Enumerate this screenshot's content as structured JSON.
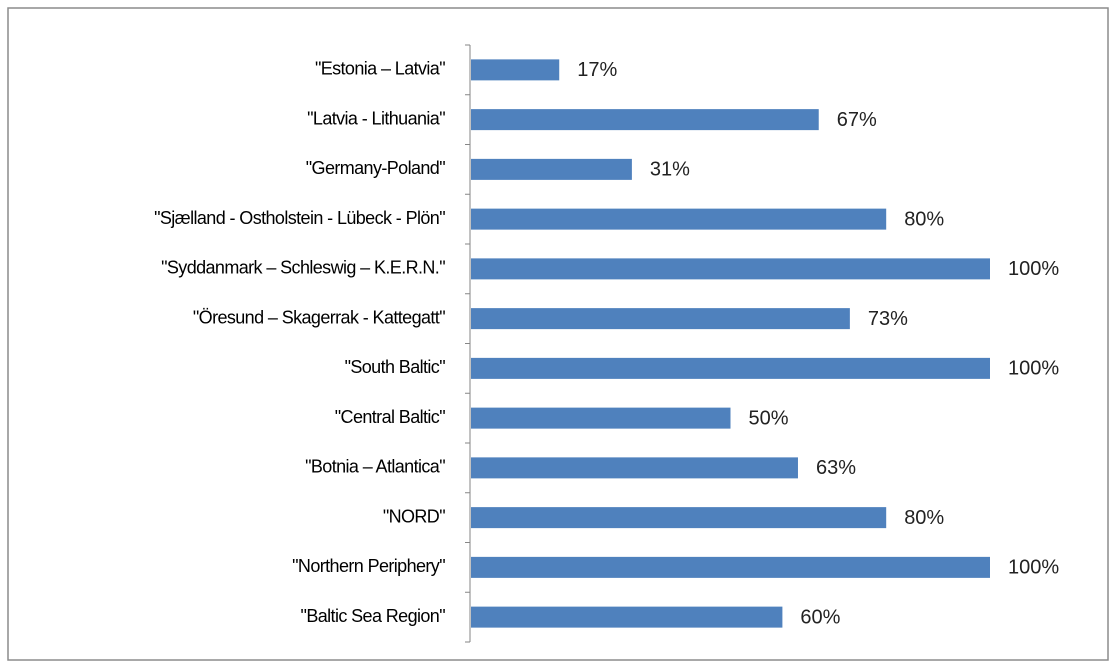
{
  "chart_data": {
    "type": "bar",
    "orientation": "horizontal",
    "categories": [
      "\"Estonia – Latvia\"",
      "\"Latvia - Lithuania\"",
      "\"Germany-Poland\"",
      "\"Sjælland - Ostholstein - Lübeck - Plön\"",
      "\"Syddanmark – Schleswig – K.E.R.N.\"",
      "\"Öresund – Skagerrak - Kattegatt\"",
      "\"South Baltic\"",
      "\"Central Baltic\"",
      "\"Botnia – Atlantica\"",
      "\"NORD\"",
      "\"Northern Periphery\"",
      "\"Baltic Sea Region\""
    ],
    "values": [
      17,
      67,
      31,
      80,
      100,
      73,
      100,
      50,
      63,
      80,
      100,
      60
    ],
    "value_labels": [
      "17%",
      "67%",
      "31%",
      "80%",
      "100%",
      "73%",
      "100%",
      "50%",
      "63%",
      "80%",
      "100%",
      "60%"
    ],
    "color": "#4f81bd",
    "xlim": [
      0,
      100
    ]
  }
}
